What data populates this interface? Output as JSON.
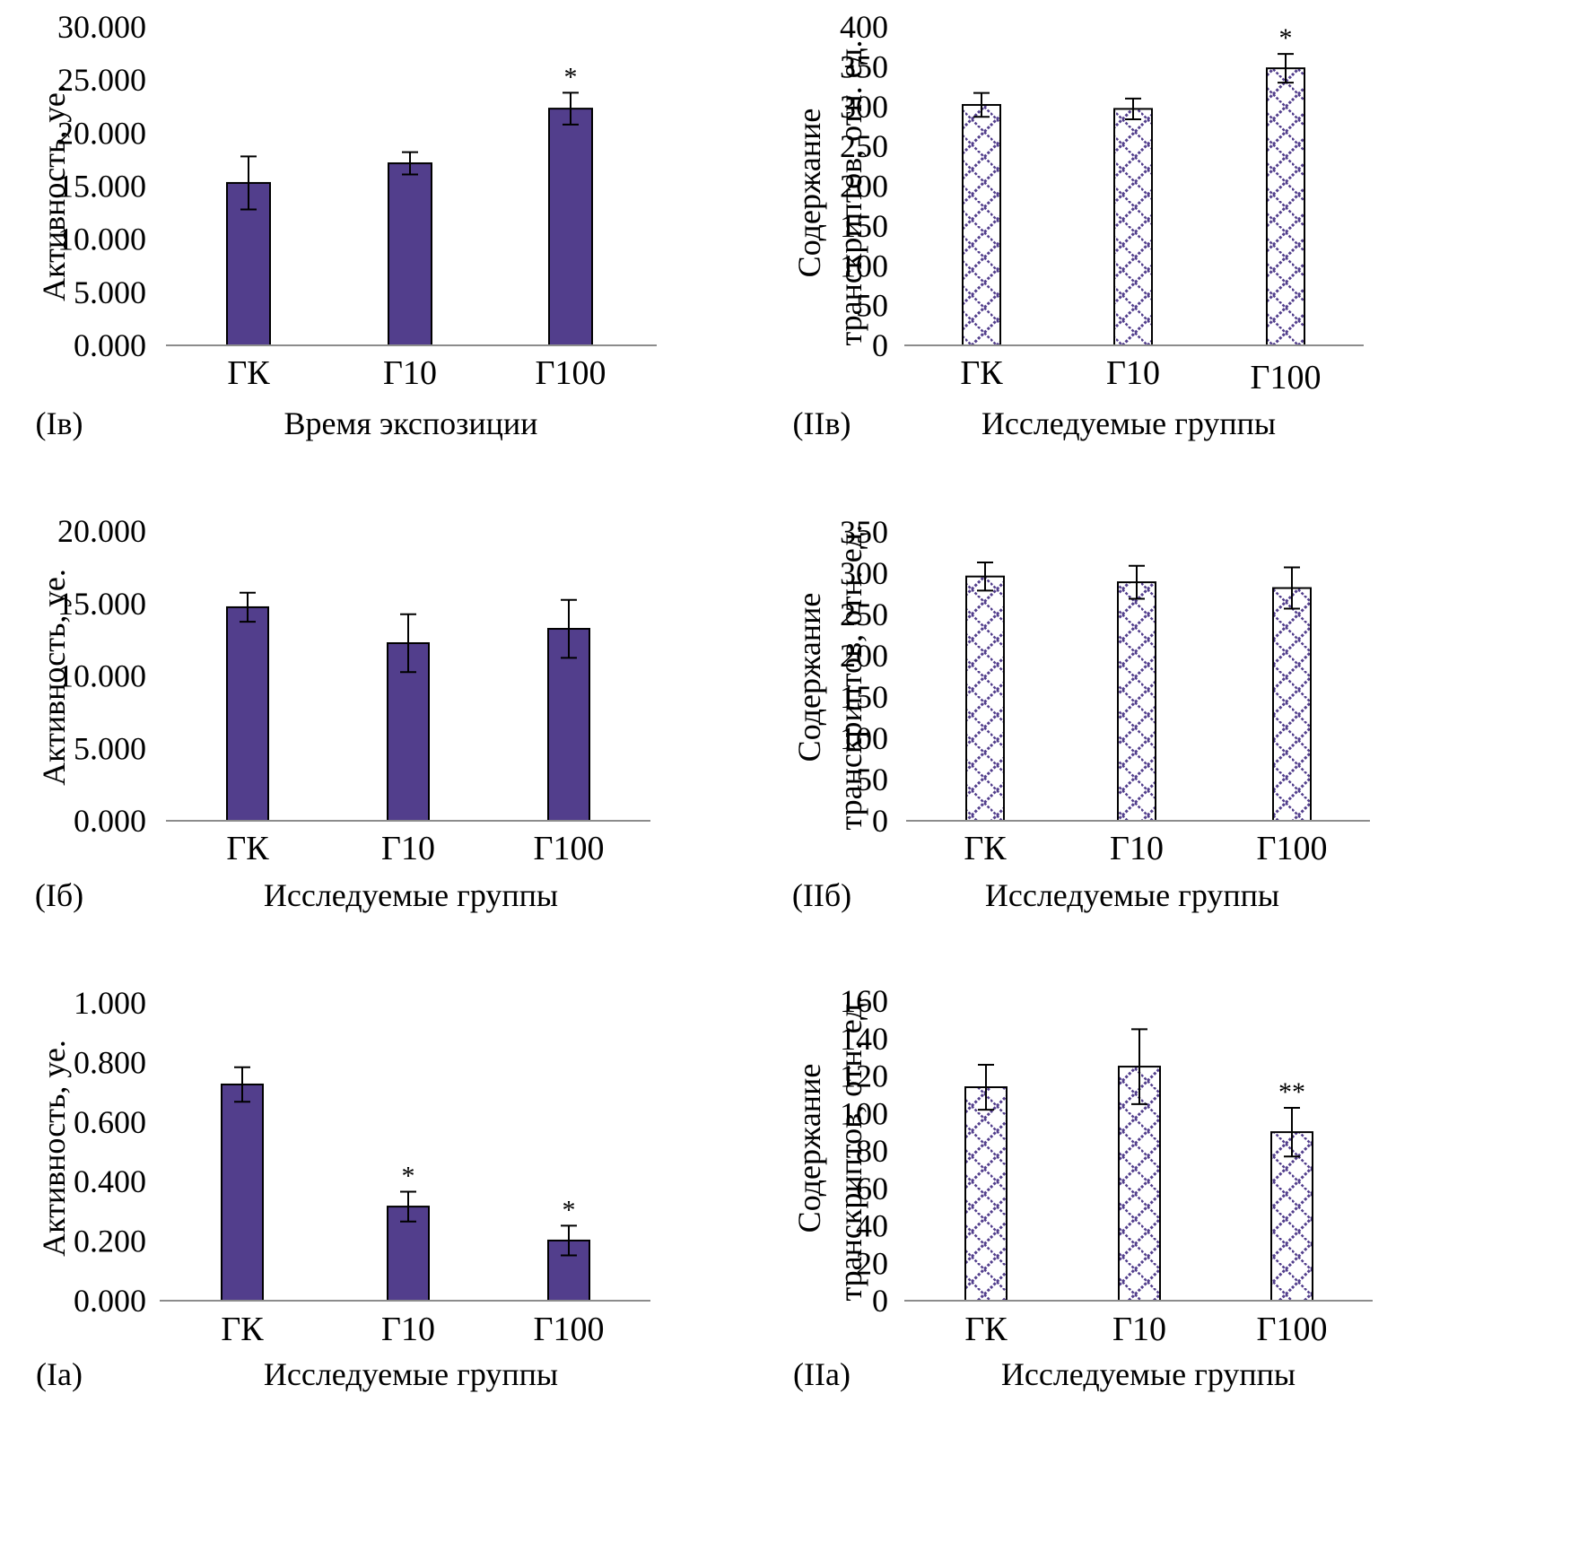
{
  "colors": {
    "bar_fill": "#523e8c",
    "bar_outline": "#000000",
    "axis": "#8c8c8c",
    "hatch": "#523e8c",
    "hatch_bg": "#ffffff"
  },
  "chart_data": [
    {
      "id": "Iv",
      "type": "bar",
      "panel_label": "(Iв)",
      "title": "",
      "xlabel": "Время экспозиции",
      "ylabel": "Активность, уе.",
      "categories": [
        "ГК",
        "Г10",
        "Г100"
      ],
      "values": [
        15300,
        17150,
        22300
      ],
      "errors": [
        2500,
        1050,
        1500
      ],
      "significance": [
        "",
        "",
        "*"
      ],
      "ylim": [
        0,
        30000
      ],
      "yticks": [
        0,
        5000,
        10000,
        15000,
        20000,
        25000,
        30000
      ],
      "ytick_labels": [
        "0.000",
        "5.000",
        "10.000",
        "15.000",
        "20.000",
        "25.000",
        "30.000"
      ],
      "fill": "solid",
      "grid": false,
      "legend": "none"
    },
    {
      "id": "IIv",
      "type": "bar",
      "panel_label": "(IIв)",
      "title": "",
      "xlabel": "Исследуемые группы",
      "ylabel": "Содержание транскриптов, отн. ед.",
      "ylabel_lines": [
        "Содержание",
        "транскриптов, отн. ед."
      ],
      "categories": [
        "ГК",
        "Г10",
        "Г100"
      ],
      "values": [
        302,
        297,
        348
      ],
      "errors": [
        15,
        13,
        18
      ],
      "significance": [
        "",
        "",
        "*"
      ],
      "ylim": [
        0,
        400
      ],
      "yticks": [
        0,
        50,
        100,
        150,
        200,
        250,
        300,
        350,
        400
      ],
      "ytick_labels": [
        "0",
        "50",
        "100",
        "150",
        "200",
        "250",
        "300",
        "350",
        "400"
      ],
      "fill": "hatched",
      "grid": false,
      "legend": "none"
    },
    {
      "id": "Ib",
      "type": "bar",
      "panel_label": "(Iб)",
      "title": "",
      "xlabel": "Исследуемые группы",
      "ylabel": "Активность, уе.",
      "categories": [
        "ГК",
        "Г10",
        "Г100"
      ],
      "values": [
        14740,
        12260,
        13250
      ],
      "errors": [
        1000,
        2000,
        2000
      ],
      "significance": [
        "",
        "",
        ""
      ],
      "ylim": [
        0,
        20000
      ],
      "yticks": [
        0,
        5000,
        10000,
        15000,
        20000
      ],
      "ytick_labels": [
        "0.000",
        "5.000",
        "10.000",
        "15.000",
        "20.000"
      ],
      "fill": "solid",
      "grid": false,
      "legend": "none"
    },
    {
      "id": "IIb",
      "type": "bar",
      "panel_label": "(IIб)",
      "title": "",
      "xlabel": "Исследуемые группы",
      "ylabel": "Содержание транскриптов, отн. ед.",
      "ylabel_lines": [
        "Содержание",
        "транскриптов, отн. ед."
      ],
      "categories": [
        "ГК",
        "Г10",
        "Г100"
      ],
      "values": [
        296,
        289,
        282
      ],
      "errors": [
        17,
        20,
        25
      ],
      "significance": [
        "",
        "",
        ""
      ],
      "ylim": [
        0,
        350
      ],
      "yticks": [
        0,
        50,
        100,
        150,
        200,
        250,
        300,
        350
      ],
      "ytick_labels": [
        "0",
        "50",
        "100",
        "150",
        "200",
        "250",
        "300",
        "350"
      ],
      "fill": "hatched",
      "grid": false,
      "legend": "none"
    },
    {
      "id": "Ia",
      "type": "bar",
      "panel_label": "(Iа)",
      "title": "",
      "xlabel": "Исследуемые группы",
      "ylabel": "Активность, уе.",
      "categories": [
        "ГК",
        "Г10",
        "Г100"
      ],
      "values": [
        0.726,
        0.316,
        0.202
      ],
      "errors": [
        0.058,
        0.05,
        0.05
      ],
      "significance": [
        "",
        "*",
        "*"
      ],
      "ylim": [
        0,
        1.0
      ],
      "yticks": [
        0,
        0.2,
        0.4,
        0.6,
        0.8,
        1.0
      ],
      "ytick_labels": [
        "0.000",
        "0.200",
        "0.400",
        "0.600",
        "0.800",
        "1.000"
      ],
      "fill": "solid",
      "grid": false,
      "legend": "none"
    },
    {
      "id": "IIa",
      "type": "bar",
      "panel_label": "(IIа)",
      "title": "",
      "xlabel": "Исследуемые группы",
      "ylabel": "Содержание транскриптов, отн. ед.",
      "ylabel_lines": [
        "Содержание",
        "транскриптов, отн. ед."
      ],
      "categories": [
        "ГК",
        "Г10",
        "Г100"
      ],
      "values": [
        114,
        125,
        90
      ],
      "errors": [
        12,
        20,
        13
      ],
      "significance": [
        "",
        "",
        "**"
      ],
      "ylim": [
        0,
        160
      ],
      "yticks": [
        0,
        20,
        40,
        60,
        80,
        100,
        120,
        140,
        160
      ],
      "ytick_labels": [
        "0",
        "20",
        "40",
        "60",
        "80",
        "100",
        "120",
        "140",
        "160"
      ],
      "fill": "hatched",
      "grid": false,
      "legend": "none"
    }
  ]
}
